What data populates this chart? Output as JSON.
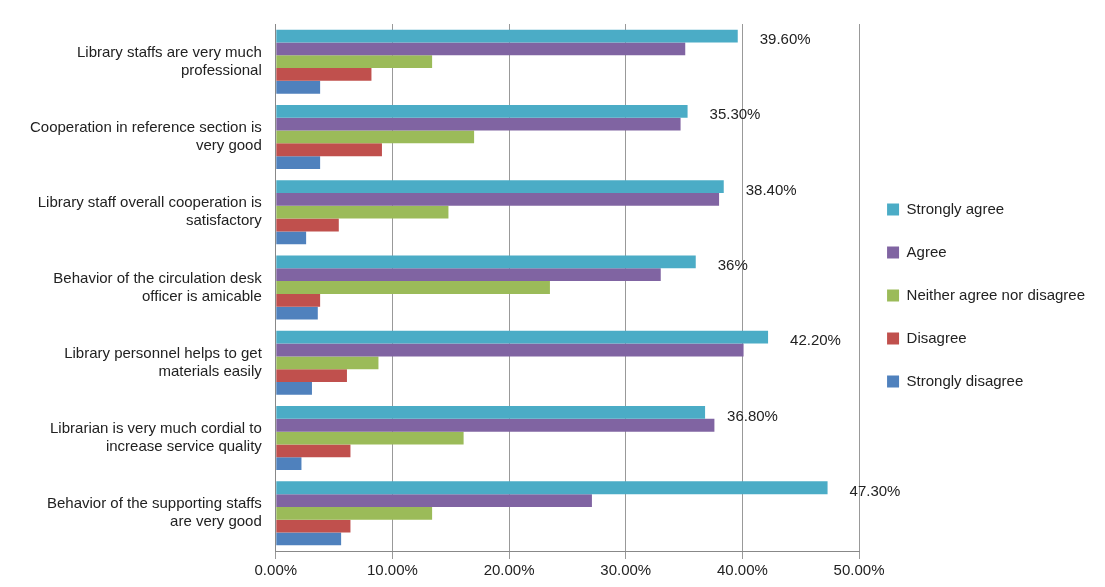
{
  "chart_data": {
    "type": "bar",
    "orientation": "horizontal",
    "categories": [
      "Library staffs are very much professional",
      "Cooperation in reference section is very good",
      "Library staff overall cooperation is satisfactory",
      "Behavior of the circulation desk officer is amicable",
      "Library personnel helps to get materials easily",
      "Librarian is very much cordial to increase service quality",
      "Behavior of the supporting staffs are very good"
    ],
    "series": [
      {
        "name": "Strongly agree",
        "color": "#4bacc6",
        "values": [
          39.6,
          35.3,
          38.4,
          36,
          42.2,
          36.8,
          47.3
        ],
        "value_labels": [
          "39.60%",
          "35.30%",
          "38.40%",
          "36%",
          "42.20%",
          "36.80%",
          "47.30%"
        ]
      },
      {
        "name": "Agree",
        "color": "#8064a2",
        "values": [
          35.1,
          34.7,
          38.0,
          33.0,
          40.1,
          37.6,
          27.1
        ]
      },
      {
        "name": "Neither agree nor disagree",
        "color": "#9bbb59",
        "values": [
          13.4,
          17.0,
          14.8,
          23.5,
          8.8,
          16.1,
          13.4
        ]
      },
      {
        "name": "Disagree",
        "color": "#c0504d",
        "values": [
          8.2,
          9.1,
          5.4,
          3.8,
          6.1,
          6.4,
          6.4
        ]
      },
      {
        "name": "Strongly disagree",
        "color": "#4f81bd",
        "values": [
          3.8,
          3.8,
          2.6,
          3.6,
          3.1,
          2.2,
          5.6
        ]
      }
    ],
    "xlim": [
      0,
      50
    ],
    "xticks": [
      {
        "value": 0,
        "label": "0.00%"
      },
      {
        "value": 10,
        "label": "10.00%"
      },
      {
        "value": 20,
        "label": "20.00%"
      },
      {
        "value": 30,
        "label": "30.00%"
      },
      {
        "value": 40,
        "label": "40.00%"
      },
      {
        "value": 50,
        "label": "50.00%"
      }
    ],
    "grid": "x",
    "legend": "right"
  }
}
